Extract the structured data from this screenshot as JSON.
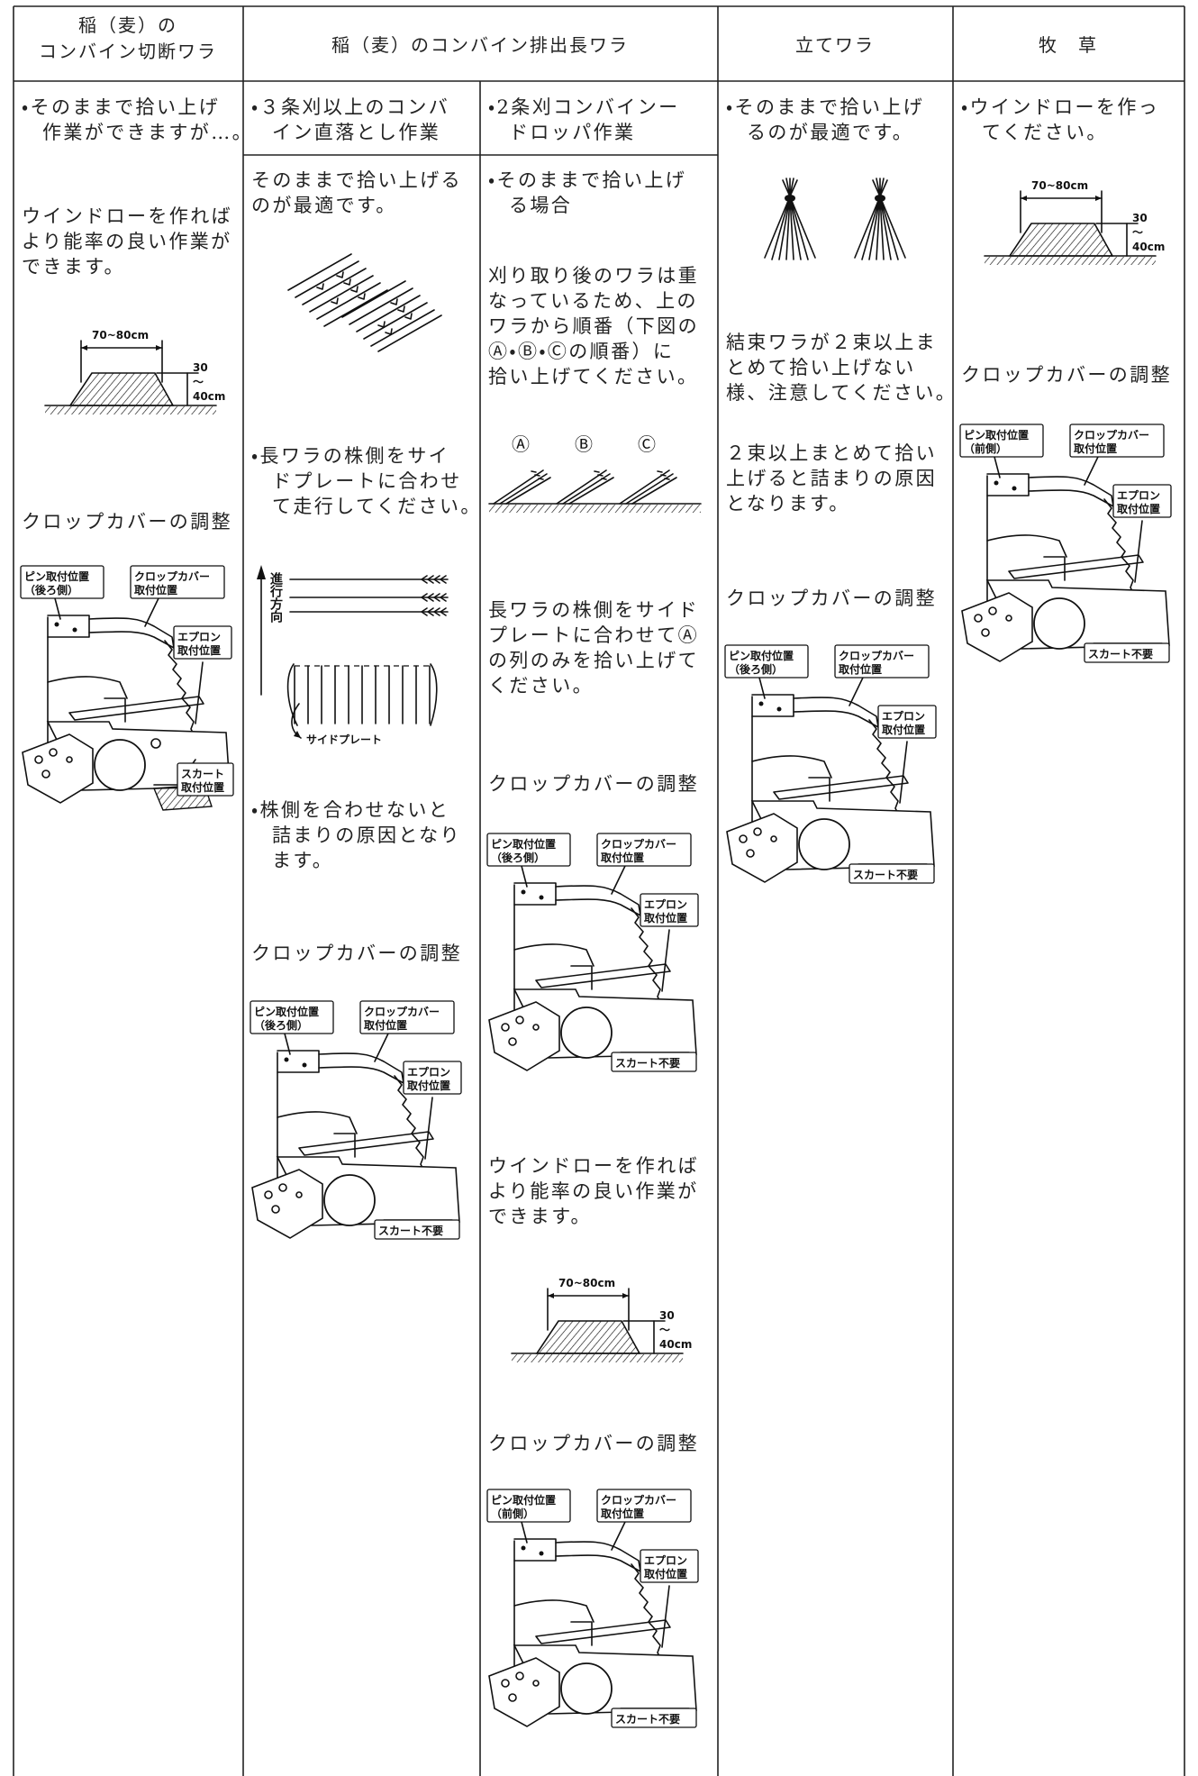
{
  "header": {
    "cells": [
      [
        "稲（麦）の",
        "コンバイン切断ワラ"
      ],
      [
        "稲（麦）のコンバイン排出長ワラ"
      ],
      [
        "立てワラ"
      ],
      [
        "牧　草"
      ]
    ]
  },
  "columns": [
    {
      "items": [
        {
          "kind": "text",
          "lines": [
            "・そのままで拾い上げ",
            "作業ができますが…。"
          ]
        },
        {
          "kind": "text",
          "lines": [
            "ウインドローを作れば",
            "より能率の良い作業が",
            "できます。"
          ]
        },
        {
          "kind": "windrow",
          "width": "70~80cm",
          "height": [
            "30",
            "〜",
            "40cm"
          ]
        },
        {
          "kind": "text",
          "lines": [
            "クロップカバーの調整"
          ]
        },
        {
          "kind": "cover",
          "pin": [
            "ピン取付位置",
            "（後ろ側）"
          ],
          "cover": [
            "クロップカバー",
            "取付位置"
          ],
          "apron": [
            "エプロン",
            "取付位置"
          ],
          "skirt": [
            "スカート",
            "取付位置"
          ]
        }
      ]
    },
    {
      "items": [
        {
          "kind": "text",
          "lines": [
            "・３条刈以上のコンバ",
            "イン直落とし作業"
          ]
        },
        {
          "kind": "text",
          "lines": [
            "そのままで拾い上げる",
            "のが最適です。"
          ]
        },
        {
          "kind": "straws"
        },
        {
          "kind": "text",
          "lines": [
            "・長ワラの株側をサイ",
            "ドプレートに合わせ",
            "て走行してください。"
          ]
        },
        {
          "kind": "direction",
          "direction": "進行方向",
          "plate": "サイドプレート"
        },
        {
          "kind": "text",
          "lines": [
            "・株側を合わせないと",
            "詰まりの原因となり",
            "ます。"
          ]
        },
        {
          "kind": "text",
          "lines": [
            "クロップカバーの調整"
          ]
        },
        {
          "kind": "cover",
          "pin": [
            "ピン取付位置",
            "（後ろ側）"
          ],
          "cover": [
            "クロップカバー",
            "取付位置"
          ],
          "apron": [
            "エプロン",
            "取付位置"
          ],
          "skirt": [
            "スカート不要"
          ]
        }
      ]
    },
    {
      "items": [
        {
          "kind": "text",
          "lines": [
            "・2条刈コンバインー",
            "ドロッパ作業"
          ]
        },
        {
          "kind": "text",
          "lines": [
            "・そのままで拾い上げ",
            "る場合"
          ]
        },
        {
          "kind": "text",
          "lines": [
            "刈り取り後のワラは重",
            "なっているため、上の",
            "ワラから順番（下図の",
            "Ⓐ・Ⓑ・Ⓒの順番）に",
            "拾い上げてください。"
          ]
        },
        {
          "kind": "rows",
          "labels": [
            "Ⓐ",
            "Ⓑ",
            "Ⓒ"
          ]
        },
        {
          "kind": "text",
          "lines": [
            "長ワラの株側をサイド",
            "プレートに合わせてⒶ",
            "の列のみを拾い上げて",
            "ください。"
          ]
        },
        {
          "kind": "text",
          "lines": [
            "クロップカバーの調整"
          ]
        },
        {
          "kind": "cover",
          "pin": [
            "ピン取付位置",
            "（後ろ側）"
          ],
          "cover": [
            "クロップカバー",
            "取付位置"
          ],
          "apron": [
            "エプロン",
            "取付位置"
          ],
          "skirt": [
            "スカート不要"
          ]
        },
        {
          "kind": "text",
          "lines": [
            "ウインドローを作れば",
            "より能率の良い作業が",
            "できます。"
          ]
        },
        {
          "kind": "windrow",
          "width": "70~80cm",
          "height": [
            "30",
            "〜",
            "40cm"
          ]
        },
        {
          "kind": "text",
          "lines": [
            "クロップカバーの調整"
          ]
        },
        {
          "kind": "cover",
          "pin": [
            "ピン取付位置",
            "（前側）"
          ],
          "cover": [
            "クロップカバー",
            "取付位置"
          ],
          "apron": [
            "エプロン",
            "取付位置"
          ],
          "skirt": [
            "スカート不要"
          ]
        }
      ]
    },
    {
      "items": [
        {
          "kind": "text",
          "lines": [
            "・そのままで拾い上げ",
            "るのが最適です。"
          ]
        },
        {
          "kind": "standing"
        },
        {
          "kind": "text",
          "lines": [
            "結束ワラが２束以上ま",
            "とめて拾い上げない",
            "様、注意してください。"
          ]
        },
        {
          "kind": "text",
          "lines": [
            "２束以上まとめて拾い",
            "上げると詰まりの原因",
            "となります。"
          ]
        },
        {
          "kind": "text",
          "lines": [
            "クロップカバーの調整"
          ]
        },
        {
          "kind": "cover",
          "pin": [
            "ピン取付位置",
            "（後ろ側）"
          ],
          "cover": [
            "クロップカバー",
            "取付位置"
          ],
          "apron": [
            "エプロン",
            "取付位置"
          ],
          "skirt": [
            "スカート不要"
          ]
        }
      ]
    },
    {
      "items": [
        {
          "kind": "text",
          "lines": [
            "・ウインドローを作っ",
            "てください。"
          ]
        },
        {
          "kind": "windrow",
          "width": "70~80cm",
          "height": [
            "30",
            "〜",
            "40cm"
          ]
        },
        {
          "kind": "text",
          "lines": [
            "クロップカバーの調整"
          ]
        },
        {
          "kind": "cover",
          "pin": [
            "ピン取付位置",
            "（前側）"
          ],
          "cover": [
            "クロップカバー",
            "取付位置"
          ],
          "apron": [
            "エプロン",
            "取付位置"
          ],
          "skirt": [
            "スカート不要"
          ]
        }
      ]
    }
  ]
}
